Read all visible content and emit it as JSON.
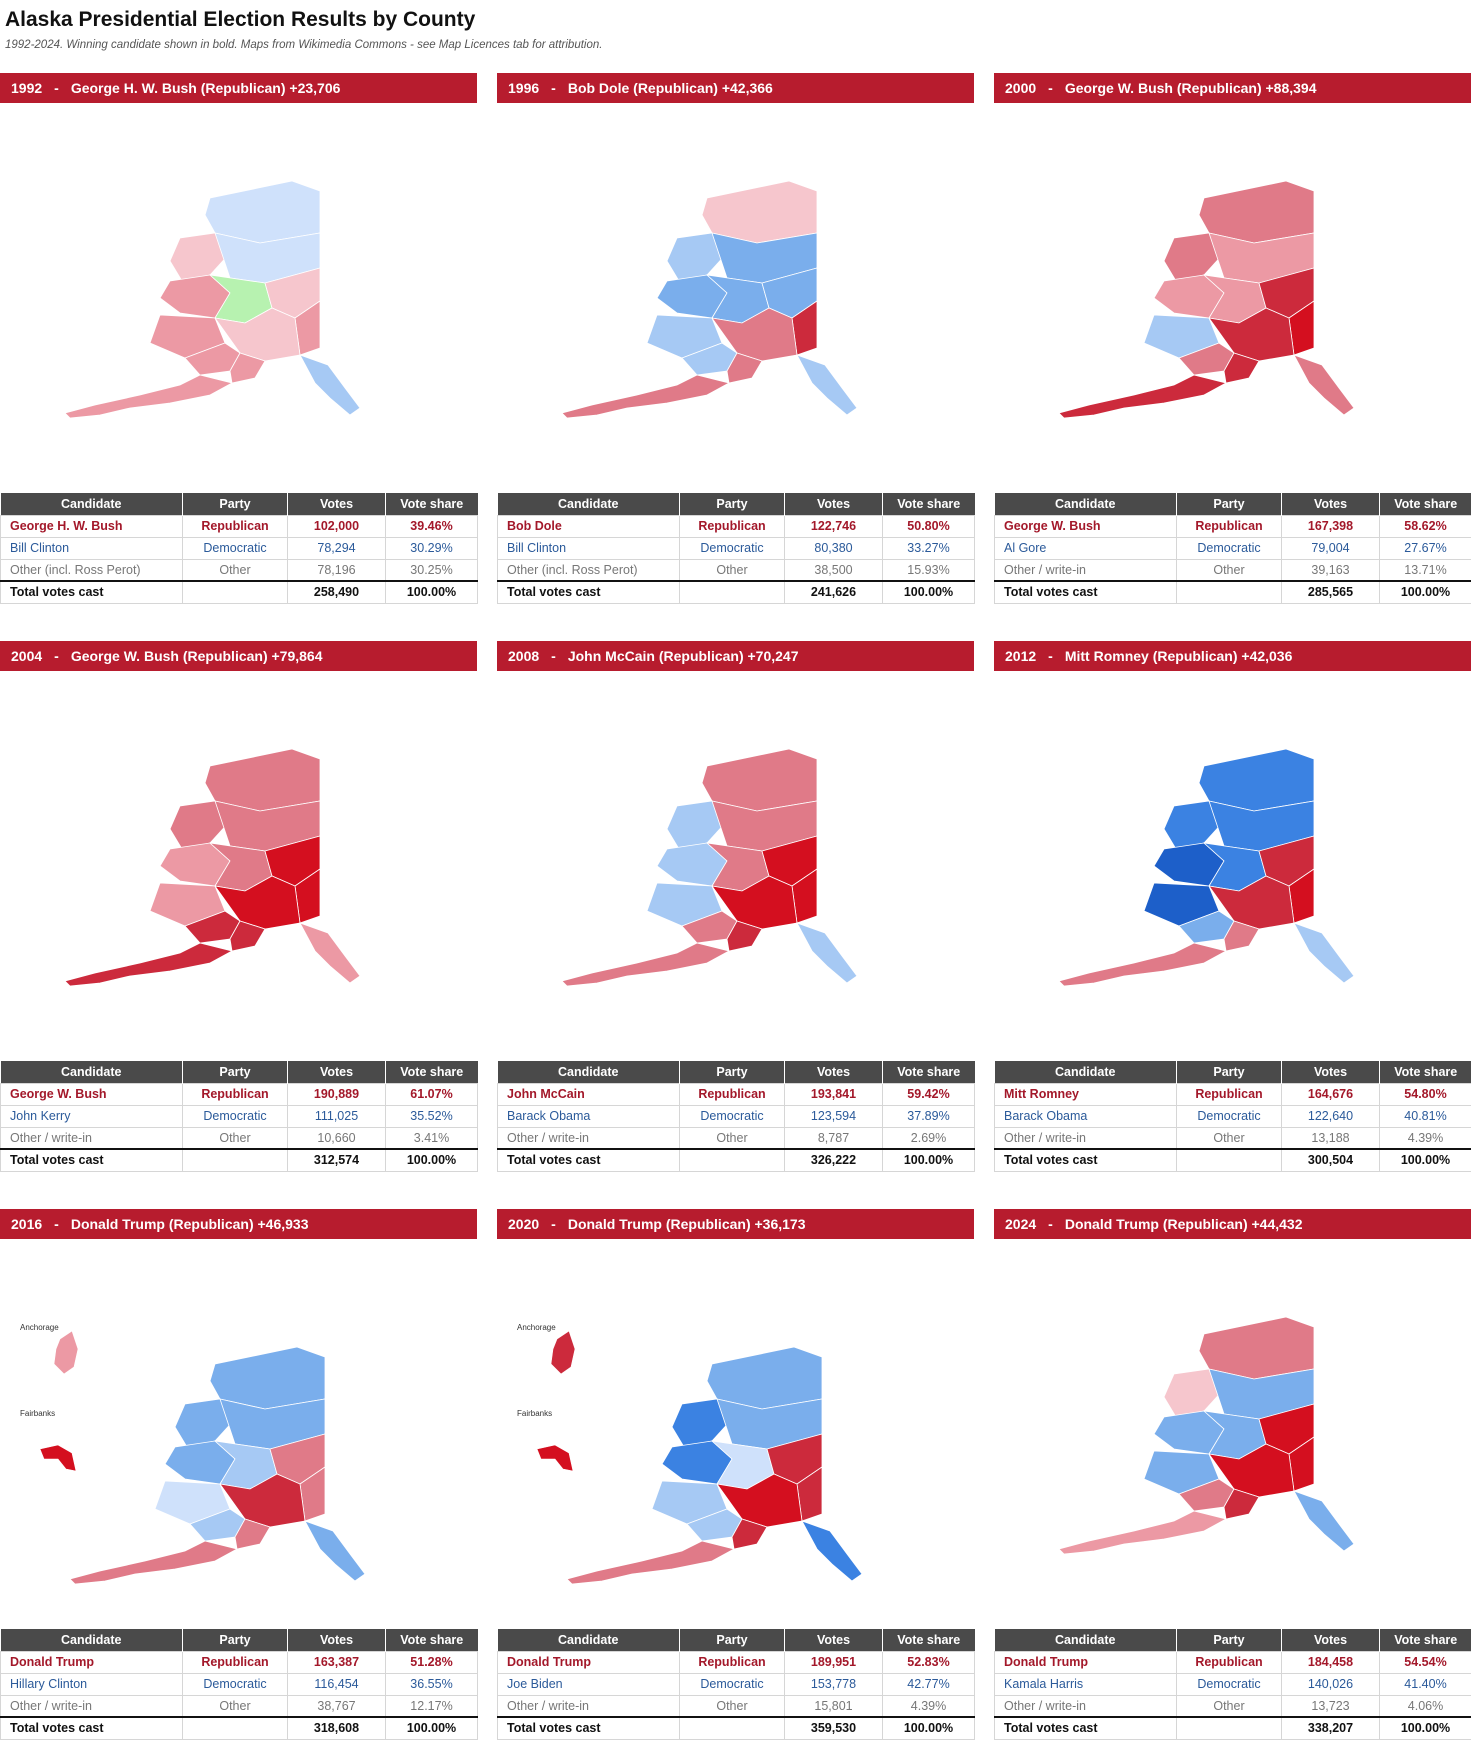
{
  "title": "Alaska Presidential Election Results by County",
  "subtitle": "1992-2024. Winning candidate shown in bold. Maps from Wikimedia Commons - see Map Licences tab for attribution.",
  "table_headers": [
    "Candidate",
    "Party",
    "Votes",
    "Vote share"
  ],
  "colors": {
    "header_red": "#b71c2e",
    "table_header": "#4a4a4a",
    "republican_text": "#a3182a",
    "democratic_text": "#2b5a9a"
  },
  "panels": [
    {
      "header": {
        "year": "1992",
        "winner": "George H. W. Bush (Republican) +23,706"
      },
      "rows": [
        {
          "candidate": "George H. W. Bush",
          "party": "Republican",
          "votes": "102,000",
          "share": "39.46%"
        },
        {
          "candidate": "Bill Clinton",
          "party": "Democratic",
          "votes": "78,294",
          "share": "30.29%"
        },
        {
          "candidate": "Other (incl. Ross Perot)",
          "party": "Other",
          "votes": "78,196",
          "share": "30.25%"
        },
        {
          "candidate": "Total votes cast",
          "party": "",
          "votes": "258,490",
          "share": "100.00%"
        }
      ]
    },
    {
      "header": {
        "year": "1996",
        "winner": "Bob Dole (Republican) +42,366"
      },
      "rows": [
        {
          "candidate": "Bob Dole",
          "party": "Republican",
          "votes": "122,746",
          "share": "50.80%"
        },
        {
          "candidate": "Bill Clinton",
          "party": "Democratic",
          "votes": "80,380",
          "share": "33.27%"
        },
        {
          "candidate": "Other (incl. Ross Perot)",
          "party": "Other",
          "votes": "38,500",
          "share": "15.93%"
        },
        {
          "candidate": "Total votes cast",
          "party": "",
          "votes": "241,626",
          "share": "100.00%"
        }
      ]
    },
    {
      "header": {
        "year": "2000",
        "winner": "George W. Bush (Republican) +88,394"
      },
      "rows": [
        {
          "candidate": "George W. Bush",
          "party": "Republican",
          "votes": "167,398",
          "share": "58.62%"
        },
        {
          "candidate": "Al Gore",
          "party": "Democratic",
          "votes": "79,004",
          "share": "27.67%"
        },
        {
          "candidate": "Other / write-in",
          "party": "Other",
          "votes": "39,163",
          "share": "13.71%"
        },
        {
          "candidate": "Total votes cast",
          "party": "",
          "votes": "285,565",
          "share": "100.00%"
        }
      ]
    },
    {
      "header": {
        "year": "2004",
        "winner": "George W. Bush (Republican) +79,864"
      },
      "rows": [
        {
          "candidate": "George W. Bush",
          "party": "Republican",
          "votes": "190,889",
          "share": "61.07%"
        },
        {
          "candidate": "John Kerry",
          "party": "Democratic",
          "votes": "111,025",
          "share": "35.52%"
        },
        {
          "candidate": "Other / write-in",
          "party": "Other",
          "votes": "10,660",
          "share": "3.41%"
        },
        {
          "candidate": "Total votes cast",
          "party": "",
          "votes": "312,574",
          "share": "100.00%"
        }
      ]
    },
    {
      "header": {
        "year": "2008",
        "winner": "John McCain (Republican) +70,247"
      },
      "rows": [
        {
          "candidate": "John McCain",
          "party": "Republican",
          "votes": "193,841",
          "share": "59.42%"
        },
        {
          "candidate": "Barack Obama",
          "party": "Democratic",
          "votes": "123,594",
          "share": "37.89%"
        },
        {
          "candidate": "Other / write-in",
          "party": "Other",
          "votes": "8,787",
          "share": "2.69%"
        },
        {
          "candidate": "Total votes cast",
          "party": "",
          "votes": "326,222",
          "share": "100.00%"
        }
      ]
    },
    {
      "header": {
        "year": "2012",
        "winner": "Mitt Romney (Republican) +42,036"
      },
      "rows": [
        {
          "candidate": "Mitt Romney",
          "party": "Republican",
          "votes": "164,676",
          "share": "54.80%"
        },
        {
          "candidate": "Barack Obama",
          "party": "Democratic",
          "votes": "122,640",
          "share": "40.81%"
        },
        {
          "candidate": "Other / write-in",
          "party": "Other",
          "votes": "13,188",
          "share": "4.39%"
        },
        {
          "candidate": "Total votes cast",
          "party": "",
          "votes": "300,504",
          "share": "100.00%"
        }
      ]
    },
    {
      "header": {
        "year": "2016",
        "winner": "Donald Trump (Republican) +46,933"
      },
      "rows": [
        {
          "candidate": "Donald Trump",
          "party": "Republican",
          "votes": "163,387",
          "share": "51.28%"
        },
        {
          "candidate": "Hillary Clinton",
          "party": "Democratic",
          "votes": "116,454",
          "share": "36.55%"
        },
        {
          "candidate": "Other / write-in",
          "party": "Other",
          "votes": "38,767",
          "share": "12.17%"
        },
        {
          "candidate": "Total votes cast",
          "party": "",
          "votes": "318,608",
          "share": "100.00%"
        }
      ],
      "insets": [
        "Anchorage",
        "Fairbanks"
      ]
    },
    {
      "header": {
        "year": "2020",
        "winner": "Donald Trump (Republican) +36,173"
      },
      "rows": [
        {
          "candidate": "Donald Trump",
          "party": "Republican",
          "votes": "189,951",
          "share": "52.83%"
        },
        {
          "candidate": "Joe Biden",
          "party": "Democratic",
          "votes": "153,778",
          "share": "42.77%"
        },
        {
          "candidate": "Other / write-in",
          "party": "Other",
          "votes": "15,801",
          "share": "4.39%"
        },
        {
          "candidate": "Total votes cast",
          "party": "",
          "votes": "359,530",
          "share": "100.00%"
        }
      ],
      "insets": [
        "Anchorage",
        "Fairbanks"
      ]
    },
    {
      "header": {
        "year": "2024",
        "winner": "Donald Trump (Republican) +44,432"
      },
      "rows": [
        {
          "candidate": "Donald Trump",
          "party": "Republican",
          "votes": "184,458",
          "share": "54.54%"
        },
        {
          "candidate": "Kamala Harris",
          "party": "Democratic",
          "votes": "140,026",
          "share": "41.40%"
        },
        {
          "candidate": "Other / write-in",
          "party": "Other",
          "votes": "13,723",
          "share": "4.06%"
        },
        {
          "candidate": "Total votes cast",
          "party": "",
          "votes": "338,207",
          "share": "100.00%"
        }
      ]
    }
  ]
}
